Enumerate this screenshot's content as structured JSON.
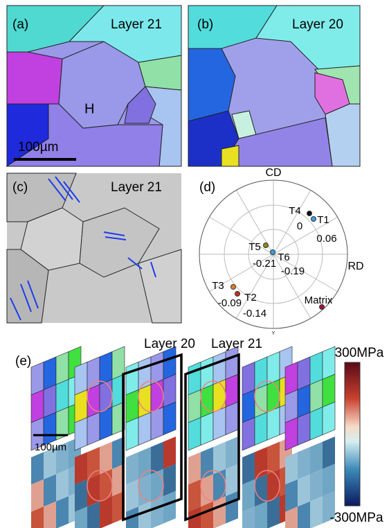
{
  "panels": [
    {
      "label": "(a)",
      "title": "Layer 21",
      "grain_label": "H",
      "scale_bar": "100µm"
    },
    {
      "label": "(b)",
      "title": "Layer 20"
    },
    {
      "label": "(c)",
      "title": "Layer 21"
    },
    {
      "label": "(d)",
      "axis_labels": {
        "top": "CD",
        "right": "RD",
        "bottom": "Y"
      },
      "points": [
        {
          "name": "T4",
          "value": 0
        },
        {
          "name": "T1",
          "value": 0.06
        },
        {
          "name": "T5",
          "value": -0.21
        },
        {
          "name": "T6",
          "value": -0.19
        },
        {
          "name": "T3",
          "value": -0.09
        },
        {
          "name": "T2",
          "value": -0.14
        },
        {
          "name": "Matrix"
        }
      ]
    },
    {
      "label": "(e)",
      "layers": [
        "Layer 20",
        "Layer 21"
      ],
      "colorbar": {
        "max": "300MPa",
        "min": "-300MPa"
      },
      "scale_bar": "100µm"
    }
  ]
}
